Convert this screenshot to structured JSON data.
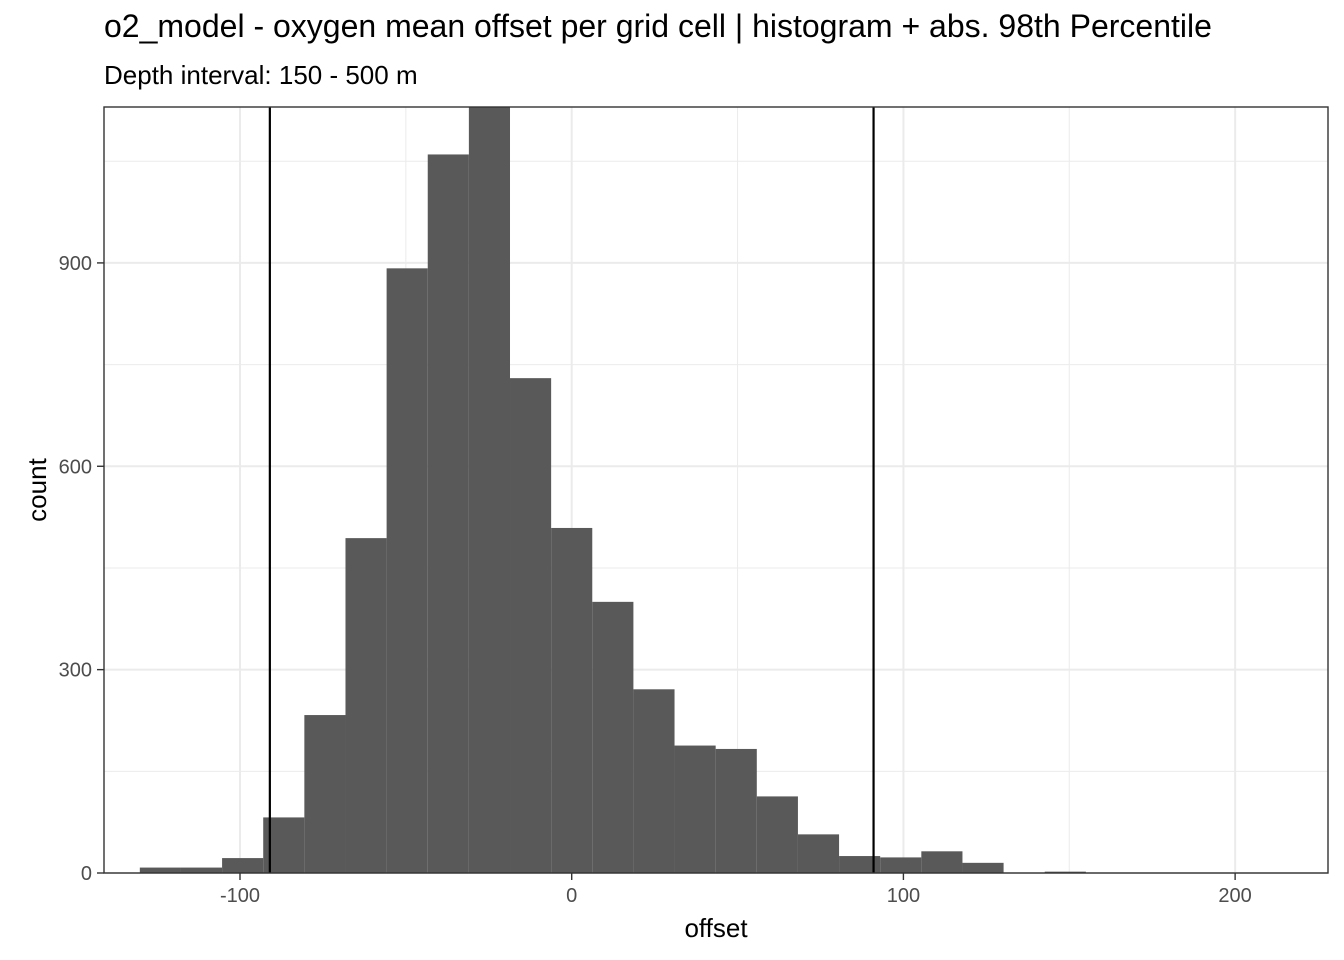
{
  "chart_data": {
    "type": "bar",
    "title": "o2_model  -  oxygen mean offset per grid cell | histogram + abs. 98th Percentile",
    "subtitle": "Depth interval: 150 - 500 m",
    "xlabel": "offset",
    "ylabel": "count",
    "xlim": [
      -141,
      228
    ],
    "ylim": [
      0,
      1130
    ],
    "x_ticks": [
      -100,
      0,
      100,
      200
    ],
    "y_ticks": [
      0,
      300,
      600,
      900
    ],
    "x_tick_labels": [
      "-100",
      "0",
      "100",
      "200"
    ],
    "y_tick_labels": [
      "0",
      "300",
      "600",
      "900"
    ],
    "grid": true,
    "bar_color": "#595959",
    "vline_color": "#000000",
    "bin_width": 12.4,
    "bin_centers": [
      -124,
      -111.6,
      -99.2,
      -86.8,
      -74.4,
      -62,
      -49.6,
      -37.2,
      -24.8,
      -12.4,
      0,
      12.4,
      24.8,
      37.2,
      49.6,
      62,
      74.4,
      86.8,
      99.2,
      111.6,
      124,
      136.4,
      148.8,
      161.2,
      173.6,
      186,
      198.4
    ],
    "values": [
      8,
      8,
      22,
      82,
      233,
      494,
      892,
      1060,
      1140,
      730,
      509,
      400,
      271,
      188,
      183,
      113,
      57,
      25,
      23,
      32,
      15,
      0,
      2,
      0,
      0,
      0,
      0
    ],
    "vlines": [
      -91,
      91
    ]
  }
}
